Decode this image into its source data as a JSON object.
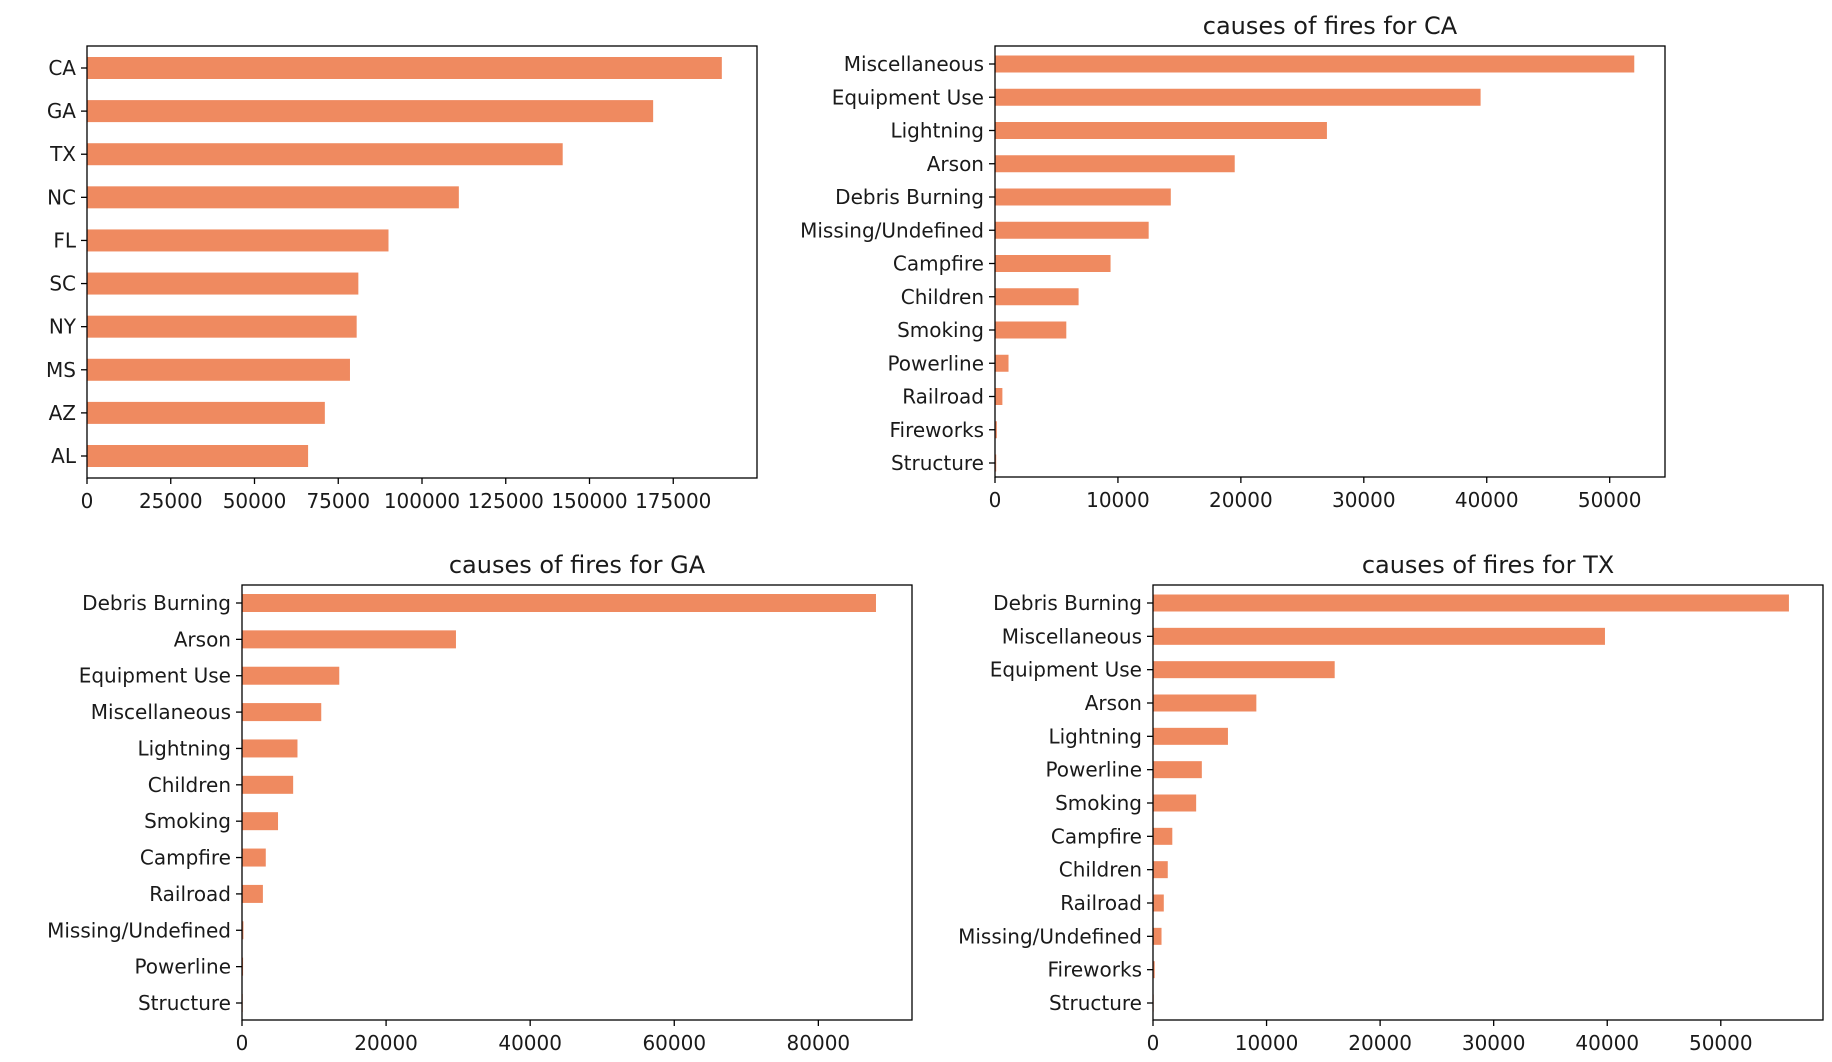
{
  "chart_data": [
    {
      "type": "bar",
      "orientation": "horizontal",
      "title": "",
      "categories": [
        "AL",
        "AZ",
        "MS",
        "NY",
        "SC",
        "FL",
        "NC",
        "TX",
        "GA",
        "CA"
      ],
      "values": [
        66000,
        71000,
        78500,
        80500,
        81000,
        90000,
        111000,
        142000,
        169000,
        189500
      ],
      "xlim": [
        0,
        200000
      ],
      "xticks": [
        0,
        25000,
        50000,
        75000,
        100000,
        125000,
        150000,
        175000
      ],
      "xtick_labels": [
        "0",
        "25000",
        "50000",
        "75000",
        "100000",
        "125000",
        "150000",
        "175000"
      ],
      "color": "#ef8a60",
      "grid": false
    },
    {
      "type": "bar",
      "orientation": "horizontal",
      "title": "causes of fires for CA",
      "categories": [
        "Structure",
        "Fireworks",
        "Railroad",
        "Powerline",
        "Smoking",
        "Children",
        "Campfire",
        "Missing/Undefined",
        "Debris Burning",
        "Arson",
        "Lightning",
        "Equipment Use",
        "Miscellaneous"
      ],
      "values": [
        100,
        150,
        600,
        1100,
        5800,
        6800,
        9400,
        12500,
        14300,
        19500,
        27000,
        39500,
        52000
      ],
      "xlim": [
        0,
        54500
      ],
      "xticks": [
        0,
        10000,
        20000,
        30000,
        40000,
        50000
      ],
      "xtick_labels": [
        "0",
        "10000",
        "20000",
        "30000",
        "40000",
        "50000"
      ],
      "color": "#ef8a60",
      "grid": false
    },
    {
      "type": "bar",
      "orientation": "horizontal",
      "title": "causes of fires for GA",
      "categories": [
        "Structure",
        "Powerline",
        "Missing/Undefined",
        "Railroad",
        "Campfire",
        "Smoking",
        "Children",
        "Lightning",
        "Miscellaneous",
        "Equipment Use",
        "Arson",
        "Debris Burning"
      ],
      "values": [
        100,
        150,
        200,
        2900,
        3300,
        5000,
        7100,
        7700,
        11000,
        13500,
        29700,
        88000
      ],
      "xlim": [
        0,
        93000
      ],
      "xticks": [
        0,
        20000,
        40000,
        60000,
        80000
      ],
      "xtick_labels": [
        "0",
        "20000",
        "40000",
        "60000",
        "80000"
      ],
      "color": "#ef8a60",
      "grid": false
    },
    {
      "type": "bar",
      "orientation": "horizontal",
      "title": "causes of fires for TX",
      "categories": [
        "Structure",
        "Fireworks",
        "Missing/Undefined",
        "Railroad",
        "Children",
        "Campfire",
        "Smoking",
        "Powerline",
        "Lightning",
        "Arson",
        "Equipment Use",
        "Miscellaneous",
        "Debris Burning"
      ],
      "values": [
        60,
        150,
        750,
        950,
        1300,
        1700,
        3800,
        4300,
        6600,
        9100,
        16000,
        39800,
        56000
      ],
      "xlim": [
        0,
        59000
      ],
      "xticks": [
        0,
        10000,
        20000,
        30000,
        40000,
        50000
      ],
      "xtick_labels": [
        "0",
        "10000",
        "20000",
        "30000",
        "40000",
        "50000"
      ],
      "color": "#ef8a60",
      "grid": false
    }
  ]
}
